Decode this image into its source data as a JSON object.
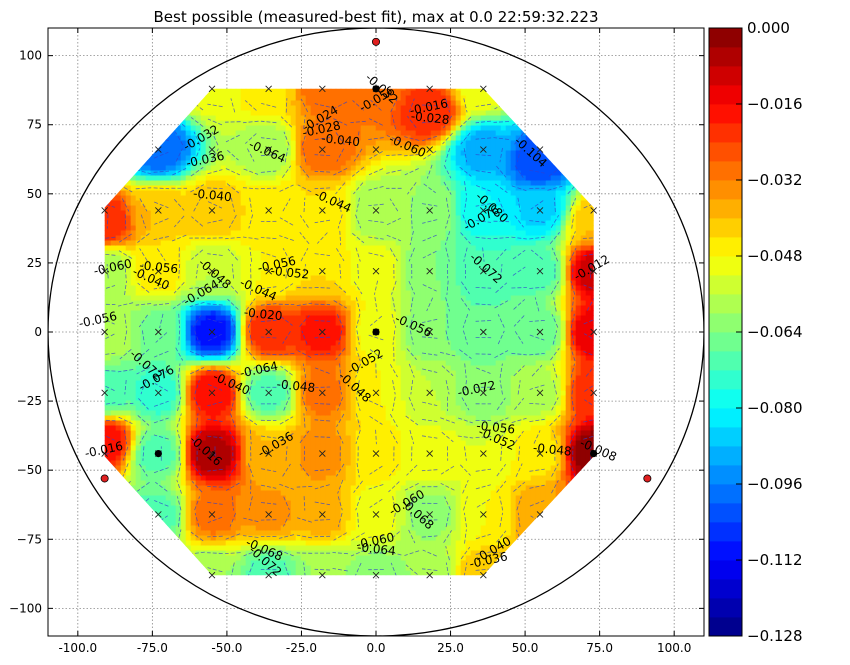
{
  "chart_data": {
    "type": "heatmap",
    "subtype": "filled-contour",
    "title": "Best possible (measured-best fit), max at 0.0 22:59:32.223",
    "xlabel": "",
    "ylabel": "",
    "xlim": [
      -110,
      110
    ],
    "ylim": [
      -110,
      110
    ],
    "x_ticks": [
      -100,
      -75,
      -50,
      -25,
      0,
      25,
      50,
      75,
      100
    ],
    "x_tick_labels": [
      "-100.0",
      "-75.0",
      "-50.0",
      "-25.0",
      "0.0",
      "25.0",
      "50.0",
      "75.0",
      "100.0"
    ],
    "y_ticks": [
      100,
      75,
      50,
      25,
      0,
      -25,
      -50,
      -75,
      -100
    ],
    "y_tick_labels": [
      "100",
      "75",
      "50",
      "25",
      "0",
      "−25",
      "−50",
      "−75",
      "−100"
    ],
    "grid": true,
    "colormap": "jet",
    "colorbar": {
      "vmin": -0.128,
      "vmax": 0.0,
      "levels": 32,
      "tick_values": [
        0.0,
        -0.016,
        -0.032,
        -0.048,
        -0.064,
        -0.08,
        -0.096,
        -0.112,
        -0.128
      ],
      "tick_labels": [
        "0.000",
        "−0.016",
        "−0.032",
        "−0.048",
        "−0.064",
        "−0.080",
        "−0.096",
        "−0.112",
        "−0.128"
      ]
    },
    "boundary_circle": {
      "center": [
        0,
        0
      ],
      "radius": 110
    },
    "region_polygon": [
      [
        -55,
        88
      ],
      [
        36,
        88
      ],
      [
        73,
        45
      ],
      [
        73,
        -45
      ],
      [
        36,
        -88
      ],
      [
        -55,
        -88
      ],
      [
        -91,
        -45
      ],
      [
        -91,
        45
      ]
    ],
    "grid_points_x": [
      -91,
      -73,
      -55,
      -36,
      -18,
      0,
      18,
      36,
      55,
      73
    ],
    "grid_points_y": [
      88,
      66,
      44,
      22,
      0,
      -22,
      -44,
      -66,
      -88
    ],
    "samples": [
      {
        "x": -36,
        "y": 66,
        "v": -0.06
      },
      {
        "x": -18,
        "y": 66,
        "v": -0.028
      },
      {
        "x": 0,
        "y": 88,
        "v": -0.03
      },
      {
        "x": 18,
        "y": 80,
        "v": -0.02
      },
      {
        "x": 36,
        "y": 66,
        "v": -0.09
      },
      {
        "x": 55,
        "y": 62,
        "v": -0.104
      },
      {
        "x": -73,
        "y": 66,
        "v": -0.1
      },
      {
        "x": -73,
        "y": 44,
        "v": -0.04
      },
      {
        "x": -55,
        "y": 44,
        "v": -0.04
      },
      {
        "x": -36,
        "y": 44,
        "v": -0.045
      },
      {
        "x": -18,
        "y": 44,
        "v": -0.044
      },
      {
        "x": 0,
        "y": 44,
        "v": -0.06
      },
      {
        "x": 18,
        "y": 44,
        "v": -0.06
      },
      {
        "x": 36,
        "y": 44,
        "v": -0.08
      },
      {
        "x": 55,
        "y": 44,
        "v": -0.085
      },
      {
        "x": 73,
        "y": 40,
        "v": -0.04
      },
      {
        "x": -91,
        "y": 40,
        "v": -0.02
      },
      {
        "x": -91,
        "y": 22,
        "v": -0.06
      },
      {
        "x": -73,
        "y": 22,
        "v": -0.045
      },
      {
        "x": -55,
        "y": 22,
        "v": -0.056
      },
      {
        "x": -36,
        "y": 22,
        "v": -0.048
      },
      {
        "x": -18,
        "y": 22,
        "v": -0.044
      },
      {
        "x": 0,
        "y": 22,
        "v": -0.05
      },
      {
        "x": 18,
        "y": 22,
        "v": -0.064
      },
      {
        "x": 36,
        "y": 22,
        "v": -0.072
      },
      {
        "x": 55,
        "y": 22,
        "v": -0.07
      },
      {
        "x": 73,
        "y": 22,
        "v": -0.01
      },
      {
        "x": -91,
        "y": 0,
        "v": -0.056
      },
      {
        "x": -73,
        "y": 0,
        "v": -0.065
      },
      {
        "x": -55,
        "y": 0,
        "v": -0.11
      },
      {
        "x": -36,
        "y": 0,
        "v": -0.02
      },
      {
        "x": -18,
        "y": 0,
        "v": -0.018
      },
      {
        "x": 0,
        "y": 0,
        "v": -0.05
      },
      {
        "x": 18,
        "y": 0,
        "v": -0.064
      },
      {
        "x": 36,
        "y": 0,
        "v": -0.068
      },
      {
        "x": 55,
        "y": 0,
        "v": -0.068
      },
      {
        "x": 73,
        "y": 0,
        "v": -0.012
      },
      {
        "x": -91,
        "y": -22,
        "v": -0.07
      },
      {
        "x": -73,
        "y": -22,
        "v": -0.075
      },
      {
        "x": -55,
        "y": -22,
        "v": -0.016
      },
      {
        "x": -36,
        "y": -22,
        "v": -0.07
      },
      {
        "x": -18,
        "y": -22,
        "v": -0.03
      },
      {
        "x": 0,
        "y": -22,
        "v": -0.048
      },
      {
        "x": 18,
        "y": -22,
        "v": -0.056
      },
      {
        "x": 36,
        "y": -22,
        "v": -0.064
      },
      {
        "x": 55,
        "y": -22,
        "v": -0.058
      },
      {
        "x": 73,
        "y": -22,
        "v": -0.02
      },
      {
        "x": -91,
        "y": -40,
        "v": -0.016
      },
      {
        "x": -73,
        "y": -44,
        "v": -0.07
      },
      {
        "x": -55,
        "y": -44,
        "v": -0.005
      },
      {
        "x": -36,
        "y": -44,
        "v": -0.04
      },
      {
        "x": -18,
        "y": -44,
        "v": -0.034
      },
      {
        "x": 0,
        "y": -44,
        "v": -0.046
      },
      {
        "x": 18,
        "y": -44,
        "v": -0.05
      },
      {
        "x": 36,
        "y": -44,
        "v": -0.052
      },
      {
        "x": 55,
        "y": -44,
        "v": -0.046
      },
      {
        "x": 73,
        "y": -44,
        "v": 0.0
      },
      {
        "x": -73,
        "y": -66,
        "v": -0.07
      },
      {
        "x": -55,
        "y": -66,
        "v": -0.03
      },
      {
        "x": -36,
        "y": -66,
        "v": -0.035
      },
      {
        "x": -18,
        "y": -66,
        "v": -0.038
      },
      {
        "x": 0,
        "y": -66,
        "v": -0.05
      },
      {
        "x": 18,
        "y": -66,
        "v": -0.062
      },
      {
        "x": 36,
        "y": -66,
        "v": -0.048
      },
      {
        "x": 55,
        "y": -66,
        "v": -0.036
      },
      {
        "x": -55,
        "y": -88,
        "v": -0.06
      },
      {
        "x": -36,
        "y": -88,
        "v": -0.07
      },
      {
        "x": -18,
        "y": -88,
        "v": -0.06
      },
      {
        "x": 0,
        "y": -88,
        "v": -0.062
      },
      {
        "x": 18,
        "y": -88,
        "v": -0.06
      },
      {
        "x": 36,
        "y": -88,
        "v": -0.04
      },
      {
        "x": -55,
        "y": 88,
        "v": -0.05
      },
      {
        "x": -36,
        "y": 88,
        "v": -0.045
      },
      {
        "x": -18,
        "y": 88,
        "v": -0.03
      },
      {
        "x": 36,
        "y": 88,
        "v": -0.05
      }
    ],
    "markers": {
      "black": [
        [
          0,
          88
        ],
        [
          0,
          0
        ],
        [
          -73,
          -44
        ],
        [
          73,
          -44
        ]
      ],
      "red": [
        [
          0,
          105
        ],
        [
          -91,
          -53
        ],
        [
          91,
          -53
        ]
      ]
    },
    "contour_labels": [
      {
        "x": -18,
        "y": 76,
        "text": "-0.024"
      },
      {
        "x": -18,
        "y": 72,
        "text": "-0.028"
      },
      {
        "x": -12,
        "y": 68,
        "text": "-0.040"
      },
      {
        "x": -37,
        "y": 64,
        "text": "-0.064"
      },
      {
        "x": 1,
        "y": 87,
        "text": "-0.032"
      },
      {
        "x": 1,
        "y": 83,
        "text": "-0.056"
      },
      {
        "x": 18,
        "y": 80,
        "text": "-0.016"
      },
      {
        "x": 18,
        "y": 76,
        "text": "-0.028"
      },
      {
        "x": 10,
        "y": 66,
        "text": "-0.060"
      },
      {
        "x": 51,
        "y": 64,
        "text": "-0.104"
      },
      {
        "x": -58,
        "y": 69,
        "text": "-0.032"
      },
      {
        "x": -57,
        "y": 61,
        "text": "-0.036"
      },
      {
        "x": -55,
        "y": 48,
        "text": "-0.040"
      },
      {
        "x": -15,
        "y": 46,
        "text": "-0.044"
      },
      {
        "x": 38,
        "y": 44,
        "text": "-0.080"
      },
      {
        "x": 36,
        "y": 40,
        "text": "-0.076"
      },
      {
        "x": -88,
        "y": 22,
        "text": "-0.060"
      },
      {
        "x": -73,
        "y": 22,
        "text": "-0.056"
      },
      {
        "x": -76,
        "y": 18,
        "text": "-0.040"
      },
      {
        "x": -55,
        "y": 20,
        "text": "-0.048"
      },
      {
        "x": -58,
        "y": 13,
        "text": "-0.064"
      },
      {
        "x": -33,
        "y": 23,
        "text": "-0.056"
      },
      {
        "x": -29,
        "y": 20,
        "text": "-0.052"
      },
      {
        "x": -40,
        "y": 14,
        "text": "-0.044"
      },
      {
        "x": 36,
        "y": 22,
        "text": "-0.072"
      },
      {
        "x": 73,
        "y": 22,
        "text": "-0.012"
      },
      {
        "x": -93,
        "y": 3,
        "text": "-0.056"
      },
      {
        "x": -38,
        "y": 5,
        "text": "-0.020"
      },
      {
        "x": 12,
        "y": 1,
        "text": "-0.056"
      },
      {
        "x": -78,
        "y": -13,
        "text": "-0.072"
      },
      {
        "x": -73,
        "y": -18,
        "text": "-0.076"
      },
      {
        "x": -39,
        "y": -15,
        "text": "-0.064"
      },
      {
        "x": -27,
        "y": -21,
        "text": "-0.048"
      },
      {
        "x": -49,
        "y": -20,
        "text": "-0.040"
      },
      {
        "x": -8,
        "y": -21,
        "text": "-0.048"
      },
      {
        "x": -3,
        "y": -12,
        "text": "-0.052"
      },
      {
        "x": 34,
        "y": -22,
        "text": "-0.072"
      },
      {
        "x": 40,
        "y": -36,
        "text": "-0.056"
      },
      {
        "x": 40,
        "y": -40,
        "text": "-0.052"
      },
      {
        "x": -58,
        "y": -44,
        "text": "-0.016"
      },
      {
        "x": -33,
        "y": -42,
        "text": "-0.036"
      },
      {
        "x": -91,
        "y": -44,
        "text": "-0.016"
      },
      {
        "x": 59,
        "y": -44,
        "text": "-0.048"
      },
      {
        "x": 74,
        "y": -44,
        "text": "-0.008"
      },
      {
        "x": 13,
        "y": -67,
        "text": "-0.068"
      },
      {
        "x": 11,
        "y": -63,
        "text": "-0.060"
      },
      {
        "x": 0,
        "y": -77,
        "text": "-0.060"
      },
      {
        "x": 0,
        "y": -80,
        "text": "-0.064"
      },
      {
        "x": -38,
        "y": -80,
        "text": "-0.068"
      },
      {
        "x": -38,
        "y": -84,
        "text": "-0.072"
      },
      {
        "x": 40,
        "y": -80,
        "text": "-0.040"
      },
      {
        "x": 38,
        "y": -84,
        "text": "-0.036"
      }
    ]
  }
}
